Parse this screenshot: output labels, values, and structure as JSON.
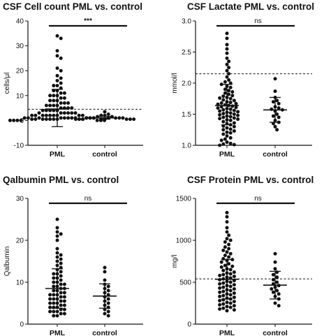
{
  "chart_data": [
    {
      "type": "scatter",
      "title": "CSF Cell count PML vs. control",
      "ylabel": "cells/μl",
      "ylim": [
        -10,
        40
      ],
      "yticks": [
        -10,
        0,
        10,
        20,
        30,
        40
      ],
      "categories": [
        "PML",
        "control"
      ],
      "reference_line": 4.5,
      "significance": "***",
      "summary": [
        {
          "group": "PML",
          "mean": 4.6,
          "sd_low": -2.5,
          "sd_high": 12.5
        },
        {
          "group": "control",
          "mean": 1.0,
          "sd_low": 0.5,
          "sd_high": 1.6
        }
      ],
      "series": [
        {
          "values": [
            34,
            33,
            28,
            26,
            25,
            21,
            20,
            18,
            17,
            16,
            15,
            14,
            14,
            13,
            12,
            12,
            11,
            11,
            10,
            10,
            10,
            9,
            9,
            8,
            8,
            8,
            7,
            7,
            7,
            6,
            6,
            6,
            6,
            5,
            5,
            5,
            5,
            4,
            4,
            4,
            4,
            4,
            3,
            3,
            3,
            3,
            3,
            3,
            2,
            2,
            2,
            2,
            2,
            2,
            2,
            2,
            2,
            1,
            1,
            1,
            1,
            1,
            1,
            1,
            1,
            1,
            1,
            1,
            0.5,
            0.5,
            0.5,
            0.5,
            0.5,
            0.5,
            0.5,
            0.5,
            0.5,
            0,
            0,
            0,
            0,
            0,
            0,
            0
          ]
        },
        {
          "values": [
            3.5,
            2.5,
            2,
            2,
            1.5,
            1.5,
            1,
            1,
            1,
            1,
            1,
            1,
            1,
            0.5,
            0.5,
            0.5,
            0.5,
            0.5,
            0.5,
            0.5,
            0.5
          ]
        }
      ]
    },
    {
      "type": "scatter",
      "title": "CSF Lactate PML vs. control",
      "ylabel": "mmol/l",
      "ylim": [
        1.0,
        3.0
      ],
      "yticks": [
        1.0,
        1.5,
        2.0,
        2.5,
        3.0
      ],
      "categories": [
        "PML",
        "control"
      ],
      "reference_line": 2.15,
      "significance": "ns",
      "summary": [
        {
          "group": "PML",
          "mean": 1.64,
          "sd_low": 1.33,
          "sd_high": 1.98
        },
        {
          "group": "control",
          "mean": 1.57,
          "sd_low": 1.37,
          "sd_high": 1.77
        }
      ],
      "series": [
        {
          "values": [
            2.8,
            2.72,
            2.62,
            2.55,
            2.48,
            2.4,
            2.35,
            2.3,
            2.25,
            2.2,
            2.15,
            2.1,
            2.05,
            2.02,
            2.0,
            1.98,
            1.95,
            1.93,
            1.9,
            1.88,
            1.86,
            1.84,
            1.82,
            1.8,
            1.79,
            1.77,
            1.76,
            1.75,
            1.73,
            1.72,
            1.7,
            1.69,
            1.68,
            1.67,
            1.66,
            1.65,
            1.64,
            1.63,
            1.62,
            1.61,
            1.6,
            1.59,
            1.58,
            1.57,
            1.56,
            1.55,
            1.54,
            1.53,
            1.52,
            1.51,
            1.5,
            1.49,
            1.48,
            1.47,
            1.46,
            1.45,
            1.44,
            1.43,
            1.42,
            1.41,
            1.4,
            1.38,
            1.36,
            1.35,
            1.33,
            1.31,
            1.3,
            1.28,
            1.26,
            1.25,
            1.23,
            1.21,
            1.2,
            1.18,
            1.15,
            1.12,
            1.1,
            1.08,
            1.05,
            1.03,
            1.02,
            1.01,
            1.0
          ]
        },
        {
          "values": [
            2.07,
            1.87,
            1.77,
            1.72,
            1.7,
            1.67,
            1.62,
            1.6,
            1.58,
            1.57,
            1.55,
            1.5,
            1.47,
            1.45,
            1.4,
            1.37,
            1.35,
            1.3,
            1.25
          ]
        }
      ]
    },
    {
      "type": "scatter",
      "title": "Qalbumin PML vs. control",
      "ylabel": "Qalbumin",
      "ylim": [
        0,
        30
      ],
      "yticks": [
        0,
        10,
        20,
        30
      ],
      "categories": [
        "PML",
        "control"
      ],
      "significance": "ns",
      "summary": [
        {
          "group": "PML",
          "mean": 8.5,
          "sd_low": 3.8,
          "sd_high": 13.2
        },
        {
          "group": "control",
          "mean": 6.7,
          "sd_low": 3.8,
          "sd_high": 9.6
        }
      ],
      "series": [
        {
          "values": [
            25,
            23,
            22,
            21.5,
            21,
            20,
            18,
            17,
            16.5,
            16,
            15.5,
            15,
            14.5,
            14,
            13.5,
            13,
            12.5,
            12,
            12,
            11.5,
            11,
            11,
            10.5,
            10,
            10,
            9.5,
            9.5,
            9,
            9,
            8.5,
            8.5,
            8,
            8,
            7.5,
            7.5,
            7,
            7,
            7,
            6.5,
            6.5,
            6,
            6,
            6,
            5.5,
            5.5,
            5,
            5,
            5,
            4.5,
            4.5,
            4,
            4,
            4,
            3.5,
            3.5,
            3,
            3,
            3,
            2.5,
            2.5,
            2,
            2
          ]
        },
        {
          "values": [
            13.5,
            12.5,
            10.5,
            9.5,
            9,
            8.5,
            8,
            7.5,
            7,
            6.5,
            6,
            5.5,
            5,
            4.5,
            4,
            3.5,
            3,
            2.5,
            2
          ]
        }
      ]
    },
    {
      "type": "scatter",
      "title": "CSF Protein PML vs. control",
      "ylabel": "mg/l",
      "ylim": [
        0,
        1500
      ],
      "yticks": [
        0,
        500,
        1000,
        1500
      ],
      "categories": [
        "PML",
        "control"
      ],
      "reference_line": 540,
      "significance": "ns",
      "summary": [
        {
          "group": "PML",
          "mean": 535,
          "sd_low": 300,
          "sd_high": 770
        },
        {
          "group": "control",
          "mean": 465,
          "sd_low": 300,
          "sd_high": 630
        }
      ],
      "series": [
        {
          "values": [
            1330,
            1280,
            1220,
            1150,
            1100,
            1060,
            1020,
            1000,
            980,
            950,
            920,
            900,
            880,
            860,
            840,
            820,
            800,
            780,
            770,
            760,
            740,
            720,
            700,
            690,
            680,
            660,
            650,
            640,
            620,
            610,
            600,
            590,
            580,
            570,
            560,
            550,
            540,
            530,
            520,
            510,
            500,
            490,
            480,
            470,
            460,
            450,
            440,
            430,
            420,
            410,
            400,
            390,
            380,
            370,
            360,
            350,
            340,
            330,
            320,
            310,
            300,
            290,
            280,
            270,
            260,
            250,
            240,
            230,
            220,
            210,
            200,
            190,
            180,
            170,
            160
          ]
        },
        {
          "values": [
            840,
            740,
            660,
            620,
            590,
            560,
            530,
            500,
            480,
            460,
            440,
            420,
            400,
            380,
            360,
            330,
            300,
            250,
            220
          ]
        }
      ]
    }
  ]
}
